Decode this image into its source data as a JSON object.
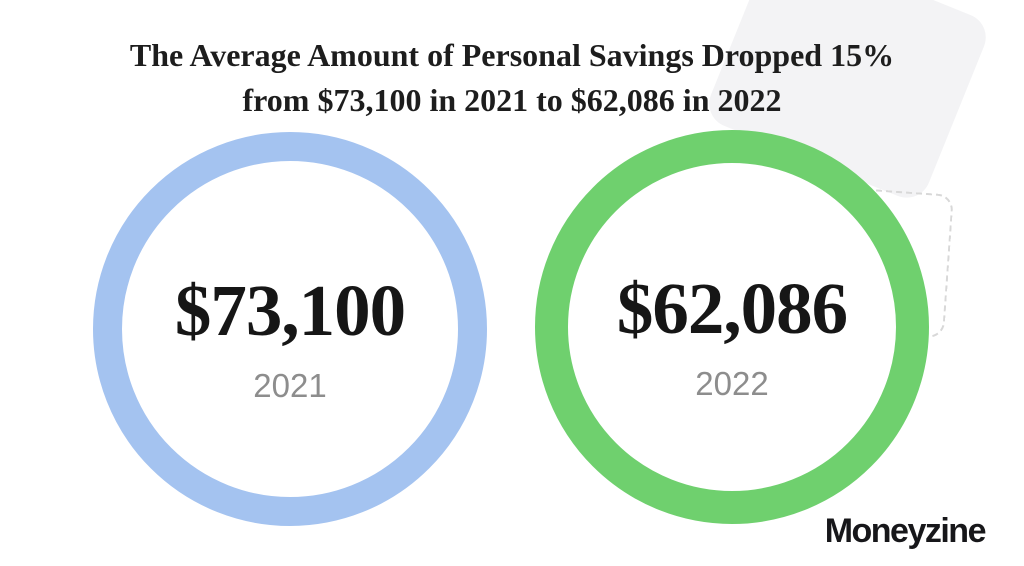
{
  "title": {
    "line1": "The Average Amount of Personal Savings Dropped 15%",
    "line2": "from $73,100 in 2021 to $62,086 in 2022"
  },
  "circles": [
    {
      "value": "$73,100",
      "year": "2021",
      "ring_color": "#a4c3f0"
    },
    {
      "value": "$62,086",
      "year": "2022",
      "ring_color": "#6fd06e"
    }
  ],
  "logo": {
    "text": "Moneyzine"
  },
  "colors": {
    "background": "#ffffff",
    "title_text": "#1d1d1d",
    "amount_text": "#161616",
    "year_text": "#8d8d8d",
    "deco_card": "#f3f3f5",
    "deco_dashed_border": "#d8d8d8",
    "logo_text": "#17171a"
  },
  "chart_data": {
    "type": "bar",
    "display_style": "circle-badges",
    "title": "The Average Amount of Personal Savings Dropped 15% from $73,100 in 2021 to $62,086 in 2022",
    "categories": [
      "2021",
      "2022"
    ],
    "values": [
      73100,
      62086
    ],
    "value_labels": [
      "$73,100",
      "$62,086"
    ],
    "series_colors": [
      "#a4c3f0",
      "#6fd06e"
    ],
    "change_percent": -15,
    "legend": "none",
    "axes": "none"
  }
}
